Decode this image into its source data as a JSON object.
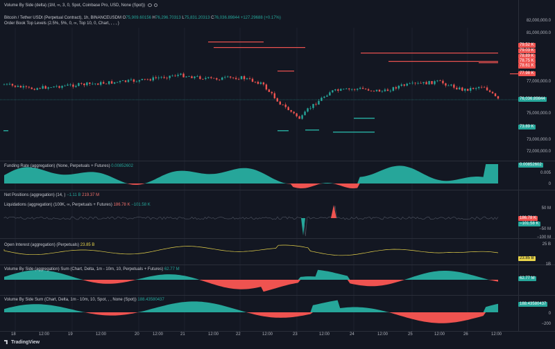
{
  "header": {
    "line1": "Volume By Side (delta) (1M, ∞, 3, 0, Spot, Coinbase Pro, USD, None (Spot))",
    "line2_symbol": "Bitcoin / Tether USDt (Perpetual Contract), 1h, BINANCEUSDM",
    "ohlc": {
      "o": "75,909.60156",
      "h": "76,296.70313",
      "l": "75,831.20313",
      "c": "76,036.89844",
      "chg": "+127.29688 (+0.17%)"
    },
    "line3": "Order Book Top Levels (2.5%, 5%, 0, ∞, Top 10, 0, Chart, , , , )"
  },
  "price_axis": {
    "ticks": [
      "82,000,000.0",
      "81,000,000.0",
      "80,000,000.0",
      "79,000,000.0",
      "78,000,000.0",
      "77,000,000.0",
      "75,000,000.0",
      "74,000,000.0",
      "73,000,000.0",
      "72,000,000.0"
    ],
    "tags_red": [
      "79.52 K",
      "79.03 K",
      "78.89 K",
      "78.75 K",
      "78.61 K",
      "77.98 K"
    ],
    "tag_price": "76,036.89844",
    "tag_green": "73.89 K"
  },
  "panes": {
    "funding": {
      "title": "Funding Rate (aggregation) (None, Perpetuals + Futures)",
      "value": "0.00852602",
      "axis": [
        "0.005",
        "0"
      ]
    },
    "netpos": {
      "title": "Net Positions (aggregation) (14, )",
      "v1": "−1.11 B",
      "v2": "219.37 M"
    },
    "liq": {
      "title": "Liquidations (aggregation) (100K, ∞, Perpetuals + Futures)",
      "v1": "186.78 K",
      "v2": "−101.58 K",
      "axis": [
        "50 M",
        "−50 M",
        "−100 M"
      ],
      "tag1": "186.78 K",
      "tag2": "−101.58 K"
    },
    "oi": {
      "title": "Open Interest (aggregation) (Perpetuals)",
      "value": "23.85 B",
      "axis": [
        "25 B"
      ],
      "tag": "23.85 B",
      "axis_b": "1B"
    },
    "vbs_agg": {
      "title": "Volume By Side (aggregation) Sum (Chart, Delta, 1m - 10m, 10, Perpetuals + Futures)",
      "value": "62.77 M",
      "tag": "62.77 M"
    },
    "vbs_spot": {
      "title": "Volume By Side Sum (Chart, Delta, 1m - 10m, 10, Spot, , , None (Spot))",
      "value": "188.43580437",
      "tag": "188.43580437",
      "axis": [
        "0",
        "−200"
      ]
    }
  },
  "time_axis": [
    "18",
    "12:00",
    "19",
    "12:00",
    "20",
    "12:00",
    "21",
    "12:00",
    "22",
    "12:00",
    "23",
    "12:00",
    "24",
    "12:00",
    "25",
    "12:00",
    "26",
    "12:00"
  ],
  "footer": {
    "brand": "TradingView"
  },
  "colors": {
    "bg": "#131722",
    "up": "#26a69a",
    "down": "#ef5350",
    "yellow": "#e8d44a"
  }
}
